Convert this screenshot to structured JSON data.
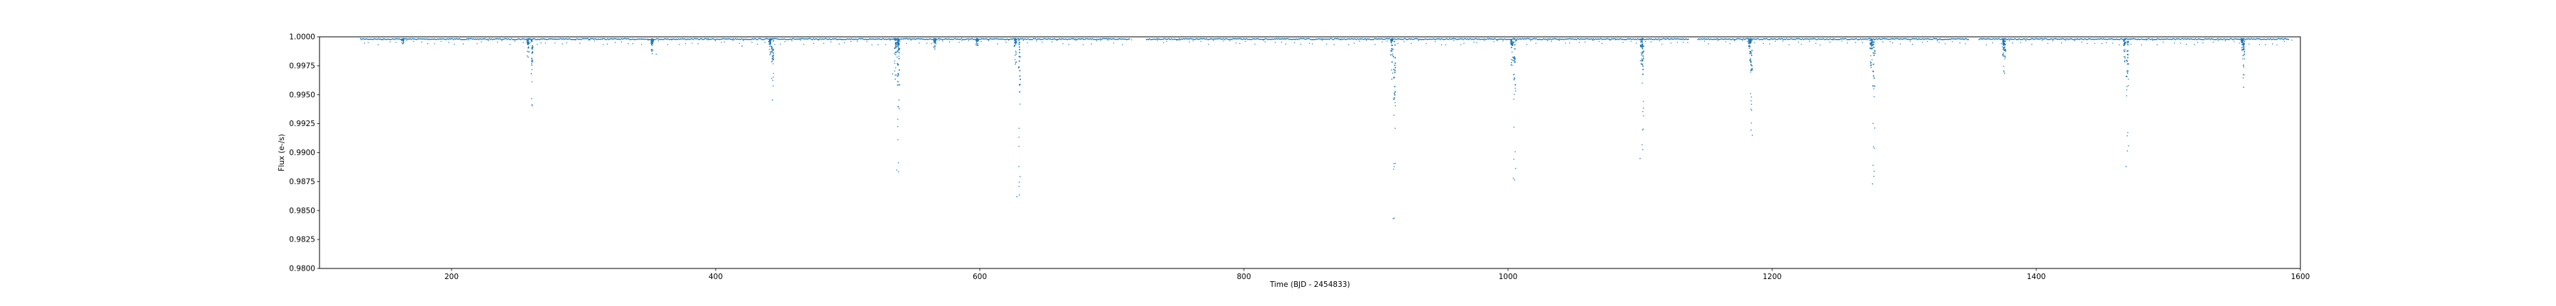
{
  "chart_data": {
    "type": "scatter",
    "title": "",
    "xlabel": "Time (BJD - 2454833)",
    "ylabel": "Flux (e-/s)",
    "xlim": [
      100,
      1600
    ],
    "ylim": [
      0.98,
      1.0
    ],
    "xticks": [
      200,
      400,
      600,
      800,
      1000,
      1200,
      1400,
      1600
    ],
    "xtick_labels": [
      "200",
      "400",
      "600",
      "800",
      "1000",
      "1200",
      "1400",
      "1600"
    ],
    "yticks": [
      0.98,
      0.9825,
      0.985,
      0.9875,
      0.99,
      0.9925,
      0.995,
      0.9975,
      1.0
    ],
    "ytick_labels": [
      "0.9800",
      "0.9825",
      "0.9850",
      "0.9875",
      "0.9900",
      "0.9925",
      "0.9950",
      "0.9975",
      "1.0000"
    ],
    "grid": false,
    "legend": "none",
    "series_color": "#1f77b4",
    "baseline": 0.99985,
    "data_start": 131,
    "data_end": 1591,
    "gaps": [
      [
        714,
        726
      ],
      [
        1137,
        1143
      ],
      [
        1349,
        1356
      ]
    ],
    "transits": [
      {
        "t": 163,
        "depth": 0.00045
      },
      {
        "t": 258,
        "depth": 0.0016
      },
      {
        "t": 261,
        "depth": 0.0058
      },
      {
        "t": 352,
        "depth": 0.0013
      },
      {
        "t": 441,
        "depth": 0.0014
      },
      {
        "t": 443,
        "depth": 0.0053
      },
      {
        "t": 536,
        "depth": 0.0035
      },
      {
        "t": 538,
        "depth": 0.0023
      },
      {
        "t": 538.5,
        "depth": 0.0115
      },
      {
        "t": 566,
        "depth": 0.0009
      },
      {
        "t": 598,
        "depth": 0.0006
      },
      {
        "t": 627,
        "depth": 0.0022
      },
      {
        "t": 630,
        "depth": 0.0135
      },
      {
        "t": 912,
        "depth": 0.0035
      },
      {
        "t": 914,
        "depth": 0.0155
      },
      {
        "t": 1003,
        "depth": 0.0023
      },
      {
        "t": 1005,
        "depth": 0.0122
      },
      {
        "t": 1101,
        "depth": 0.0022
      },
      {
        "t": 1102,
        "depth": 0.0096
      },
      {
        "t": 1183,
        "depth": 0.0013
      },
      {
        "t": 1184,
        "depth": 0.0079
      },
      {
        "t": 1275,
        "depth": 0.0025
      },
      {
        "t": 1277,
        "depth": 0.0119
      },
      {
        "t": 1375,
        "depth": 0.0015
      },
      {
        "t": 1376,
        "depth": 0.003
      },
      {
        "t": 1467,
        "depth": 0.002
      },
      {
        "t": 1469,
        "depth": 0.0097
      },
      {
        "t": 1556,
        "depth": 0.001
      },
      {
        "t": 1557,
        "depth": 0.0042
      }
    ],
    "outliers": [
      {
        "t": 355,
        "y": 0.9985
      },
      {
        "t": 420,
        "y": 0.9992
      },
      {
        "t": 534,
        "y": 0.9968
      },
      {
        "t": 537,
        "y": 0.9885
      },
      {
        "t": 628,
        "y": 0.9862
      },
      {
        "t": 913,
        "y": 0.9843
      },
      {
        "t": 1004,
        "y": 0.9878
      },
      {
        "t": 1100,
        "y": 0.9895
      },
      {
        "t": 1185,
        "y": 0.9915
      },
      {
        "t": 1276,
        "y": 0.9873
      },
      {
        "t": 1468,
        "y": 0.9888
      }
    ]
  }
}
